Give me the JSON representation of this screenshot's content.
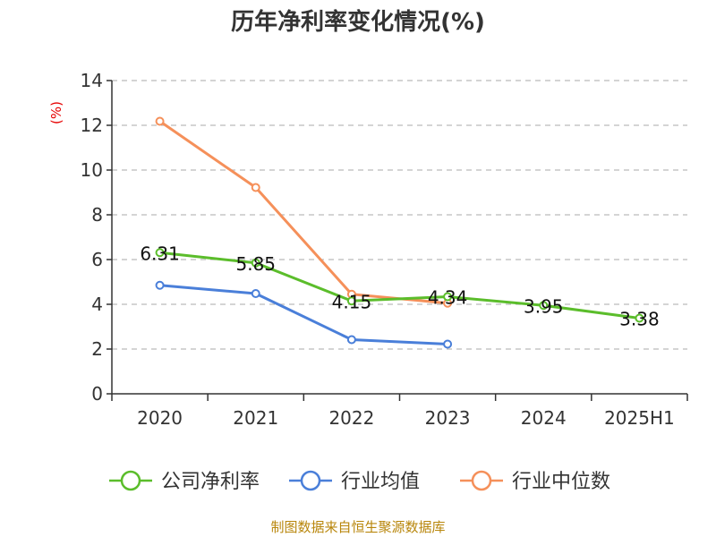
{
  "chart_data": {
    "type": "line",
    "title": "历年净利率变化情况(%)",
    "ylabel": "(%)",
    "xlabel": "",
    "categories": [
      "2020",
      "2021",
      "2022",
      "2023",
      "2024",
      "2025H1"
    ],
    "ylim": [
      0,
      14
    ],
    "yticks": [
      0,
      2,
      4,
      6,
      8,
      10,
      12,
      14
    ],
    "grid": true,
    "legend_position": "bottom",
    "series": [
      {
        "name": "公司净利率",
        "color": "#5bbd2b",
        "values": [
          6.31,
          5.85,
          4.15,
          4.34,
          3.95,
          3.38
        ],
        "labels": [
          "6.31",
          "5.85",
          "4.15",
          "4.34",
          "3.95",
          "3.38"
        ]
      },
      {
        "name": "行业均值",
        "color": "#4a7fd9",
        "values": [
          4.85,
          4.48,
          2.42,
          2.22,
          null,
          null
        ]
      },
      {
        "name": "行业中位数",
        "color": "#f5905a",
        "values": [
          12.18,
          9.22,
          4.45,
          4.05,
          null,
          null
        ]
      }
    ]
  },
  "footer": {
    "source": "制图数据来自恒生聚源数据库"
  }
}
